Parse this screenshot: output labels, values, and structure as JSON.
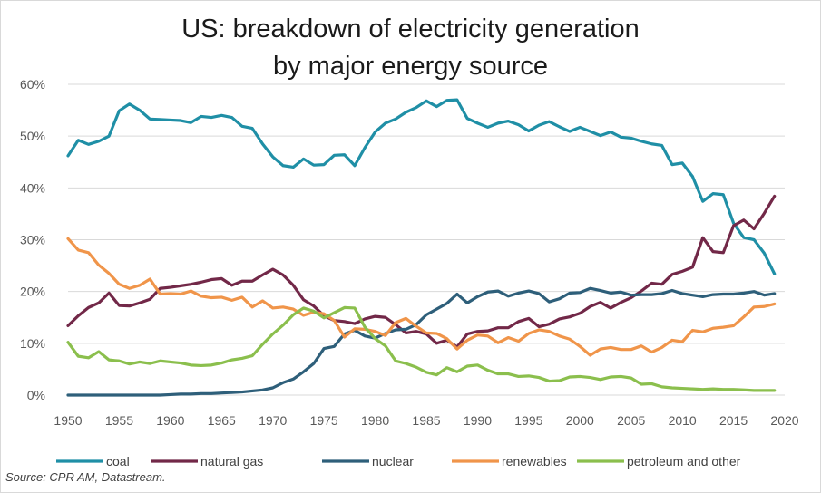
{
  "chart_data": {
    "type": "line",
    "title": "US: breakdown of electricity generation",
    "subtitle": "by major energy source",
    "xlabel": "",
    "ylabel": "",
    "xlim": [
      1950,
      2020
    ],
    "ylim": [
      0,
      60
    ],
    "x_ticks": [
      "1950",
      "1955",
      "1960",
      "1965",
      "1970",
      "1975",
      "1980",
      "1985",
      "1990",
      "1995",
      "2000",
      "2005",
      "2010",
      "2015",
      "2020"
    ],
    "y_ticks": [
      "0%",
      "10%",
      "20%",
      "30%",
      "40%",
      "50%",
      "60%"
    ],
    "grid": "horizontal",
    "legend_position": "bottom",
    "source": "Source: CPR AM, Datastream.",
    "x": [
      1950,
      1951,
      1952,
      1953,
      1954,
      1955,
      1956,
      1957,
      1958,
      1959,
      1960,
      1961,
      1962,
      1963,
      1964,
      1965,
      1966,
      1967,
      1968,
      1969,
      1970,
      1971,
      1972,
      1973,
      1974,
      1975,
      1976,
      1977,
      1978,
      1979,
      1980,
      1981,
      1982,
      1983,
      1984,
      1985,
      1986,
      1987,
      1988,
      1989,
      1990,
      1991,
      1992,
      1993,
      1994,
      1995,
      1996,
      1997,
      1998,
      1999,
      2000,
      2001,
      2002,
      2003,
      2004,
      2005,
      2006,
      2007,
      2008,
      2009,
      2010,
      2011,
      2012,
      2013,
      2014,
      2015,
      2016,
      2017,
      2018,
      2019
    ],
    "series": [
      {
        "name": "coal",
        "color": "#1f8fa6",
        "values": [
          46.2,
          49.2,
          48.4,
          49.0,
          50.0,
          54.9,
          56.2,
          55.0,
          53.3,
          53.2,
          53.1,
          53.0,
          52.6,
          53.8,
          53.6,
          54.0,
          53.6,
          51.9,
          51.5,
          48.5,
          46.0,
          44.3,
          44.0,
          45.6,
          44.4,
          44.5,
          46.3,
          46.4,
          44.3,
          47.8,
          50.8,
          52.5,
          53.3,
          54.6,
          55.5,
          56.8,
          55.7,
          56.9,
          57.0,
          53.4,
          52.5,
          51.7,
          52.5,
          52.9,
          52.2,
          51.0,
          52.1,
          52.8,
          51.8,
          50.9,
          51.7,
          50.9,
          50.1,
          50.8,
          49.8,
          49.6,
          49.0,
          48.5,
          48.2,
          44.5,
          44.8,
          42.2,
          37.4,
          38.9,
          38.7,
          33.2,
          30.4,
          30.0,
          27.4,
          23.4
        ]
      },
      {
        "name": "natural gas",
        "color": "#722848",
        "values": [
          13.4,
          15.3,
          16.9,
          17.8,
          19.7,
          17.3,
          17.2,
          17.8,
          18.5,
          20.6,
          20.8,
          21.1,
          21.4,
          21.8,
          22.3,
          22.5,
          21.2,
          22.0,
          22.0,
          23.2,
          24.3,
          23.2,
          21.2,
          18.4,
          17.2,
          15.3,
          14.4,
          14.2,
          13.8,
          14.7,
          15.2,
          15.0,
          13.6,
          12.0,
          12.3,
          11.8,
          10.0,
          10.6,
          9.3,
          11.8,
          12.3,
          12.4,
          13.0,
          13.0,
          14.2,
          14.8,
          13.2,
          13.7,
          14.7,
          15.1,
          15.8,
          17.1,
          17.9,
          16.8,
          17.9,
          18.8,
          20.1,
          21.6,
          21.4,
          23.3,
          23.9,
          24.7,
          30.4,
          27.7,
          27.5,
          32.7,
          33.8,
          32.1,
          35.1,
          38.4
        ]
      },
      {
        "name": "nuclear",
        "color": "#2e5f7a",
        "values": [
          0,
          0,
          0,
          0,
          0,
          0,
          0,
          0,
          0,
          0,
          0.1,
          0.2,
          0.2,
          0.3,
          0.3,
          0.4,
          0.5,
          0.6,
          0.8,
          1.0,
          1.4,
          2.4,
          3.1,
          4.5,
          6.1,
          9.0,
          9.4,
          11.8,
          12.5,
          11.4,
          11.0,
          11.9,
          12.6,
          12.7,
          13.6,
          15.5,
          16.6,
          17.7,
          19.5,
          17.8,
          19.0,
          19.9,
          20.1,
          19.1,
          19.7,
          20.1,
          19.6,
          18.0,
          18.6,
          19.7,
          19.8,
          20.6,
          20.2,
          19.7,
          19.9,
          19.3,
          19.4,
          19.4,
          19.6,
          20.2,
          19.6,
          19.3,
          19.0,
          19.4,
          19.5,
          19.5,
          19.7,
          20.0,
          19.3,
          19.6
        ]
      },
      {
        "name": "renewables",
        "color": "#f0954a",
        "values": [
          30.2,
          28.0,
          27.5,
          25.1,
          23.5,
          21.4,
          20.6,
          21.2,
          22.4,
          19.5,
          19.6,
          19.5,
          20.1,
          19.1,
          18.8,
          18.9,
          18.3,
          18.9,
          17.0,
          18.2,
          16.8,
          17.0,
          16.6,
          15.4,
          16.0,
          15.7,
          14.4,
          11.2,
          12.8,
          12.7,
          12.3,
          11.5,
          14.0,
          14.8,
          13.3,
          12.0,
          11.9,
          10.9,
          8.9,
          10.6,
          11.6,
          11.4,
          10.1,
          11.1,
          10.4,
          11.9,
          12.6,
          12.3,
          11.4,
          10.8,
          9.4,
          7.7,
          8.9,
          9.2,
          8.8,
          8.8,
          9.5,
          8.3,
          9.2,
          10.6,
          10.3,
          12.5,
          12.2,
          12.9,
          13.1,
          13.4,
          15.1,
          17.0,
          17.1,
          17.6
        ]
      },
      {
        "name": "petroleum and other",
        "color": "#8bbf4d",
        "values": [
          10.2,
          7.5,
          7.2,
          8.4,
          6.8,
          6.6,
          6.0,
          6.4,
          6.1,
          6.6,
          6.4,
          6.2,
          5.8,
          5.7,
          5.8,
          6.2,
          6.8,
          7.1,
          7.6,
          9.8,
          11.8,
          13.5,
          15.5,
          16.8,
          16.2,
          14.9,
          15.9,
          16.9,
          16.8,
          13.1,
          10.9,
          9.5,
          6.6,
          6.1,
          5.4,
          4.4,
          3.9,
          5.3,
          4.5,
          5.6,
          5.8,
          4.8,
          4.1,
          4.1,
          3.6,
          3.7,
          3.4,
          2.7,
          2.8,
          3.5,
          3.6,
          3.4,
          3.0,
          3.5,
          3.6,
          3.3,
          2.1,
          2.2,
          1.6,
          1.4,
          1.3,
          1.2,
          1.1,
          1.2,
          1.1,
          1.1,
          1.0,
          0.9,
          0.9,
          0.9
        ]
      }
    ]
  }
}
